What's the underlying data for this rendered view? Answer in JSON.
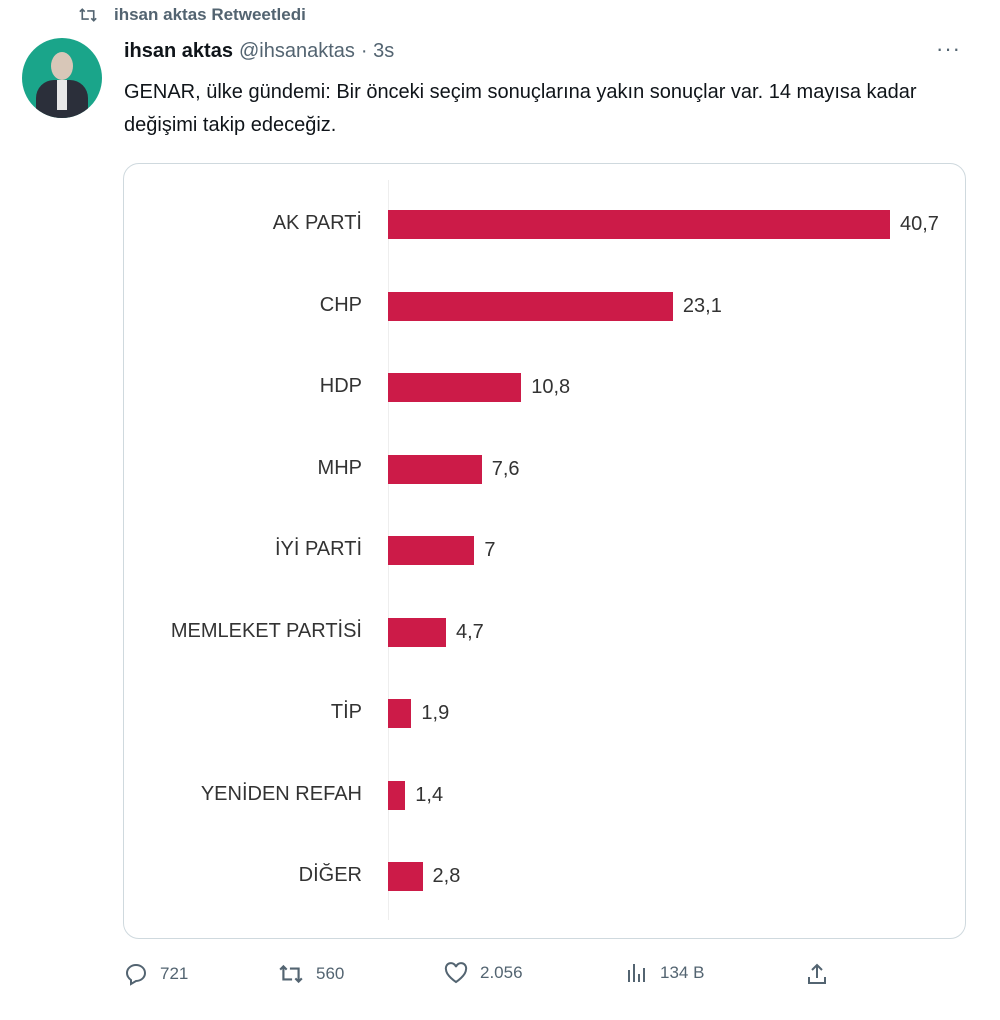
{
  "retweet_banner": "ihsan aktas Retweetledi",
  "tweet": {
    "name": "ihsan aktas",
    "handle": "@ihsanaktas",
    "time": "· 3s",
    "text": "GENAR, ülke gündemi: Bir önceki seçim sonuçlarına yakın sonuçlar var. 14 mayısa kadar değişimi takip edeceğiz."
  },
  "actions": {
    "replies": "721",
    "retweets": "560",
    "likes": "2.056",
    "views": "134 B"
  },
  "colors": {
    "bar": "#cc1b48"
  },
  "chart_data": {
    "type": "bar",
    "orientation": "horizontal",
    "categories": [
      "AK PARTİ",
      "CHP",
      "HDP",
      "MHP",
      "İYİ PARTİ",
      "MEMLEKET PARTİSİ",
      "TİP",
      "YENİDEN REFAH",
      "DİĞER"
    ],
    "values": [
      40.7,
      23.1,
      10.8,
      7.6,
      7,
      4.7,
      1.9,
      1.4,
      2.8
    ],
    "value_labels": [
      "40,7",
      "23,1",
      "10,8",
      "7,6",
      "7",
      "4,7",
      "1,9",
      "1,4",
      "2,8"
    ],
    "grid": false
  }
}
